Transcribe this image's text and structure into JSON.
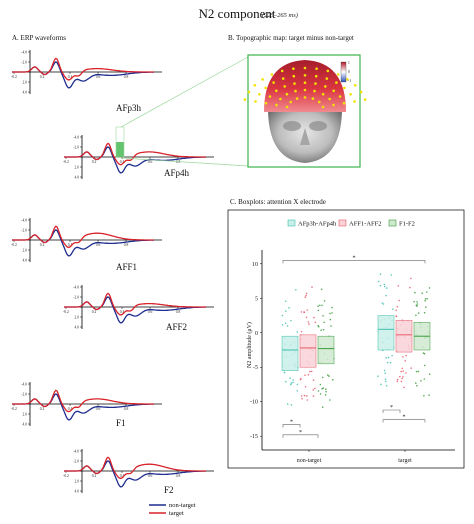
{
  "title": "N2 component",
  "subtitle": "(225–265 ms)",
  "panels": {
    "a": "A. ERP waveforms",
    "b": "B. Topographic map: target minus non-target",
    "c": "C. Boxplots: attention X electrode"
  },
  "erp": {
    "y_ticks": [
      "-4.0",
      "-2.0",
      "",
      "2.0",
      "4.0"
    ],
    "x_ticks": [
      "-0.2",
      "0.2",
      "0.4",
      "0.6",
      "0.8"
    ],
    "electrodes": [
      "AFp3h",
      "AFp4h",
      "AFF1",
      "AFF2",
      "F1",
      "F2"
    ],
    "legend": [
      "non-target",
      "target"
    ],
    "colors": {
      "non_target": "#1f2d8f",
      "target": "#d8232a",
      "window": "#3cb44b"
    }
  },
  "topo": {
    "colorbar_ticks": [
      "1",
      "0",
      "-1"
    ]
  },
  "chart_data": {
    "type": "boxplot",
    "title": "C. Boxplots: attention X electrode",
    "ylabel": "N2 amplitude (μV)",
    "categories": [
      "non-target",
      "target"
    ],
    "ylim": [
      -17,
      12
    ],
    "yticks": [
      "10",
      "5",
      "0",
      "-5",
      "-10",
      "-15"
    ],
    "series": [
      {
        "name": "AFp3h-AFp4h",
        "color": "#3fbfae",
        "fill": "#c9efe9",
        "values": [
          {
            "q1": -5.5,
            "median": -2.5,
            "q3": -0.5
          },
          {
            "q1": -2.5,
            "median": 0.5,
            "q3": 2.5
          }
        ]
      },
      {
        "name": "AFF1-AFF2",
        "color": "#e85a6a",
        "fill": "#f9d3d8",
        "values": [
          {
            "q1": -5.0,
            "median": -2.2,
            "q3": -0.3
          },
          {
            "q1": -2.8,
            "median": -0.3,
            "q3": 1.8
          }
        ]
      },
      {
        "name": "F1-F2",
        "color": "#3c9a3c",
        "fill": "#cfe9cf",
        "values": [
          {
            "q1": -4.5,
            "median": -2.3,
            "q3": -0.5
          },
          {
            "q1": -2.5,
            "median": -0.5,
            "q3": 1.5
          }
        ]
      }
    ],
    "significance_marker": "*",
    "legend": "top"
  }
}
